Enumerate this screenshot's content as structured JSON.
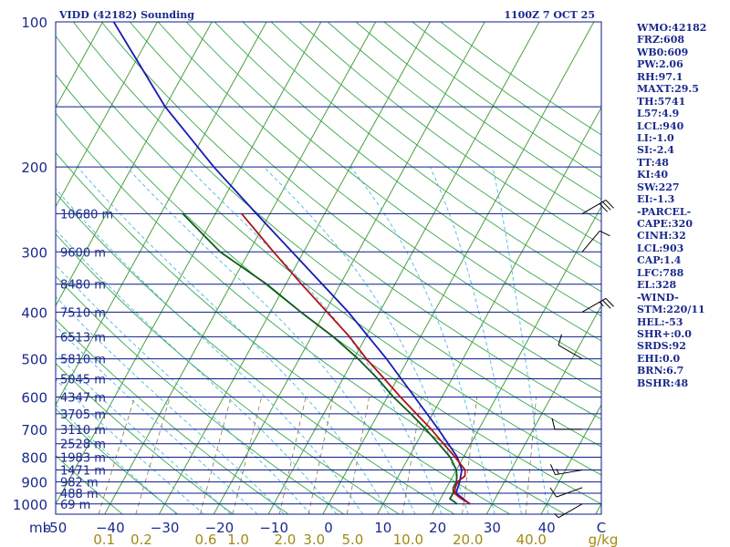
{
  "chart_data": {
    "type": "skew-t log-p sounding",
    "title_left": "VIDD (42182) Sounding",
    "title_right": "1100Z  7 OCT 25",
    "pressure_axis_label": "mb",
    "pressure_ticks": [
      {
        "p": 100,
        "label": "100"
      },
      {
        "p": 200,
        "label": "200"
      },
      {
        "p": 300,
        "label": "300"
      },
      {
        "p": 400,
        "label": "400"
      },
      {
        "p": 500,
        "label": "500"
      },
      {
        "p": 600,
        "label": "600"
      },
      {
        "p": 700,
        "label": "700"
      },
      {
        "p": 800,
        "label": "800"
      },
      {
        "p": 900,
        "label": "900"
      },
      {
        "p": 1000,
        "label": "1000"
      }
    ],
    "temperature_ticks": [
      {
        "t": -50,
        "label": "-50"
      },
      {
        "t": -40,
        "label": "−40"
      },
      {
        "t": -30,
        "label": "−30"
      },
      {
        "t": -20,
        "label": "−20"
      },
      {
        "t": -10,
        "label": "−10"
      },
      {
        "t": 0,
        "label": "0"
      },
      {
        "t": 10,
        "label": "10"
      },
      {
        "t": 20,
        "label": "20"
      },
      {
        "t": 30,
        "label": "30"
      },
      {
        "t": 40,
        "label": "40"
      },
      {
        "t": 50,
        "label": "C"
      }
    ],
    "mixing_ratio_labels": [
      {
        "w": 0.1,
        "label": "0.1"
      },
      {
        "w": 0.2,
        "label": "0.2"
      },
      {
        "w": 0.6,
        "label": "0.6"
      },
      {
        "w": 1.0,
        "label": "1.0"
      },
      {
        "w": 2.0,
        "label": "2.0"
      },
      {
        "w": 3.0,
        "label": "3.0"
      },
      {
        "w": 5.0,
        "label": "5.0"
      },
      {
        "w": 10.0,
        "label": "10.0"
      },
      {
        "w": 20.0,
        "label": "20.0"
      },
      {
        "w": 40.0,
        "label": "40.0"
      }
    ],
    "mixing_ratio_unit": "g/kg",
    "height_levels": [
      {
        "p": 250,
        "label": "10680 m"
      },
      {
        "p": 300,
        "label": "9600 m"
      },
      {
        "p": 350,
        "label": "8480 m"
      },
      {
        "p": 400,
        "label": "7510 m"
      },
      {
        "p": 450,
        "label": "6513 m"
      },
      {
        "p": 500,
        "label": "5810 m"
      },
      {
        "p": 550,
        "label": "5045 m"
      },
      {
        "p": 600,
        "label": "4347 m"
      },
      {
        "p": 650,
        "label": "3705 m"
      },
      {
        "p": 700,
        "label": "3110 m"
      },
      {
        "p": 750,
        "label": "2528 m"
      },
      {
        "p": 800,
        "label": "1983 m"
      },
      {
        "p": 850,
        "label": "1471 m"
      },
      {
        "p": 900,
        "label": "982 m"
      },
      {
        "p": 950,
        "label": "488 m"
      },
      {
        "p": 1000,
        "label": "69 m"
      }
    ],
    "temperature_profile": [
      [
        1000,
        26.0
      ],
      [
        975,
        23.8
      ],
      [
        950,
        22.0
      ],
      [
        925,
        21.6
      ],
      [
        900,
        21.4
      ],
      [
        875,
        22.2
      ],
      [
        850,
        21.6
      ],
      [
        800,
        18.5
      ],
      [
        750,
        15.0
      ],
      [
        700,
        11.3
      ],
      [
        650,
        7.0
      ],
      [
        600,
        2.4
      ],
      [
        550,
        -2.4
      ],
      [
        500,
        -7.7
      ],
      [
        450,
        -13.0
      ],
      [
        400,
        -19.6
      ],
      [
        350,
        -27.1
      ],
      [
        300,
        -35.5
      ],
      [
        250,
        -45.2
      ]
    ],
    "dewpoint_profile": [
      [
        1000,
        23.6
      ],
      [
        975,
        21.7
      ],
      [
        950,
        21.8
      ],
      [
        925,
        21.2
      ],
      [
        900,
        21.2
      ],
      [
        875,
        20.7
      ],
      [
        850,
        20.0
      ],
      [
        800,
        17.6
      ],
      [
        750,
        14.1
      ],
      [
        700,
        10.3
      ],
      [
        650,
        6.0
      ],
      [
        600,
        1.1
      ],
      [
        550,
        -3.6
      ],
      [
        500,
        -9.2
      ],
      [
        450,
        -16.0
      ],
      [
        400,
        -24.4
      ],
      [
        350,
        -33.5
      ],
      [
        300,
        -45.3
      ],
      [
        250,
        -56.0
      ]
    ],
    "parcel_profile": [
      [
        1000,
        25.9
      ],
      [
        950,
        22.3
      ],
      [
        900,
        21.8
      ],
      [
        850,
        21.0
      ],
      [
        800,
        18.9
      ],
      [
        700,
        12.6
      ],
      [
        600,
        5.0
      ],
      [
        500,
        -4.0
      ],
      [
        400,
        -15.7
      ],
      [
        300,
        -32.1
      ],
      [
        250,
        -42.5
      ],
      [
        200,
        -55.0
      ],
      [
        150,
        -70.0
      ],
      [
        100,
        -88.0
      ]
    ],
    "wind_barbs": [
      {
        "p": 1000,
        "dir": 240,
        "kt": 5
      },
      {
        "p": 925,
        "dir": 250,
        "kt": 10
      },
      {
        "p": 850,
        "dir": 260,
        "kt": 15
      },
      {
        "p": 700,
        "dir": 270,
        "kt": 10
      },
      {
        "p": 500,
        "dir": 300,
        "kt": 10
      },
      {
        "p": 400,
        "dir": 60,
        "kt": 25
      },
      {
        "p": 300,
        "dir": 40,
        "kt": 10
      },
      {
        "p": 250,
        "dir": 60,
        "kt": 30
      }
    ],
    "x_range_celsius_at_1000mb": [
      -50,
      50
    ],
    "y_range_mb": [
      100,
      1050
    ],
    "colors": {
      "frame": "#0b1a8c",
      "isobar": "#0b1a8c",
      "isotherm": "#4d9e3e",
      "dry_adiabat": "#39a84c",
      "moist_adiabat": "#4db7df",
      "mixing_ratio": "#8a7a4a",
      "temperature": "#b21016",
      "dewpoint": "#115a1b",
      "parcel": "#1a1ab4",
      "wind": "#000000"
    }
  },
  "stats": [
    "WMO:42182",
    "FRZ:608",
    "WB0:609",
    "PW:2.06",
    "RH:97.1",
    "MAXT:29.5",
    "TH:5741",
    "L57:4.9",
    "LCL:940",
    "LI:-1.0",
    "SI:-2.4",
    "TT:48",
    "KI:40",
    "SW:227",
    "EI:-1.3",
    "-PARCEL-",
    "CAPE:320",
    "CINH:32",
    "LCL:903",
    "CAP:1.4",
    "LFC:788",
    "EL:328",
    "-WIND-",
    "STM:220/11",
    "HEL:-53",
    "SHR+:0.0",
    "SRDS:92",
    "EHI:0.0",
    "BRN:6.7",
    "BSHR:48"
  ]
}
